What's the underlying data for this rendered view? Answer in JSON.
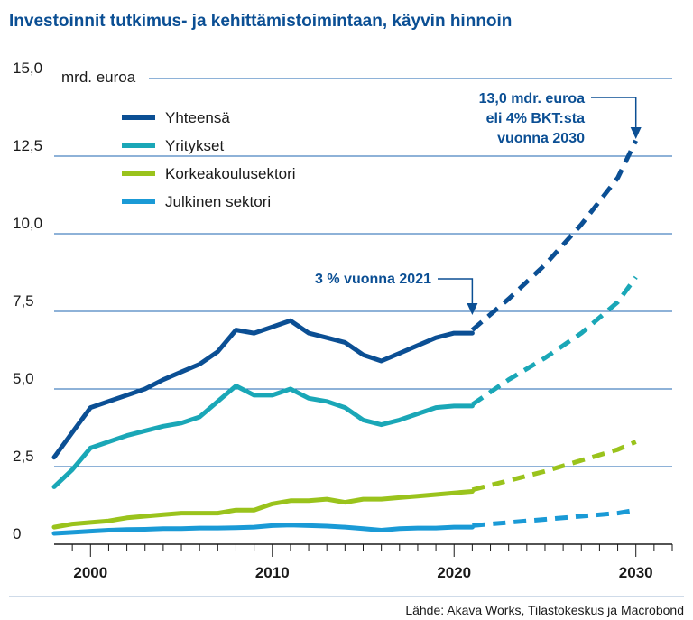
{
  "chart_data": {
    "type": "line",
    "title": "Investoinnit tutkimus- ja kehittämistoimintaan, käyvin hinnoin",
    "ylabel": "mrd. euroa",
    "ylim": [
      0,
      15
    ],
    "yticks": [
      "15,0",
      "12,5",
      "10,0",
      "7,5",
      "5,0",
      "2,5",
      "0"
    ],
    "ytick_values": [
      15,
      12.5,
      10,
      7.5,
      5,
      2.5,
      0
    ],
    "xlim": [
      1998,
      2032
    ],
    "xticks": [
      "2000",
      "2010",
      "2020",
      "2030"
    ],
    "xtick_values": [
      2000,
      2010,
      2020,
      2030
    ],
    "grid": true,
    "legend_position": "top-left",
    "series": [
      {
        "name": "Yhteensä",
        "color": "#0b4f94",
        "x": [
          1998,
          1999,
          2000,
          2001,
          2002,
          2003,
          2004,
          2005,
          2006,
          2007,
          2008,
          2009,
          2010,
          2011,
          2012,
          2013,
          2014,
          2015,
          2016,
          2017,
          2018,
          2019,
          2020,
          2021
        ],
        "values": [
          2.8,
          3.6,
          4.4,
          4.6,
          4.8,
          5.0,
          5.3,
          5.55,
          5.8,
          6.2,
          6.9,
          6.8,
          7.0,
          7.2,
          6.8,
          6.65,
          6.5,
          6.1,
          5.9,
          6.15,
          6.4,
          6.65,
          6.8,
          6.8
        ],
        "projection": {
          "x": [
            2021,
            2023,
            2025,
            2027,
            2029,
            2030
          ],
          "values": [
            6.9,
            7.9,
            9.0,
            10.3,
            11.8,
            13.0
          ]
        }
      },
      {
        "name": "Yritykset",
        "color": "#1aa7b7",
        "x": [
          1998,
          1999,
          2000,
          2001,
          2002,
          2003,
          2004,
          2005,
          2006,
          2007,
          2008,
          2009,
          2010,
          2011,
          2012,
          2013,
          2014,
          2015,
          2016,
          2017,
          2018,
          2019,
          2020,
          2021
        ],
        "values": [
          1.85,
          2.4,
          3.1,
          3.3,
          3.5,
          3.65,
          3.8,
          3.9,
          4.1,
          4.6,
          5.1,
          4.8,
          4.8,
          5.0,
          4.7,
          4.6,
          4.4,
          4.0,
          3.85,
          4.0,
          4.2,
          4.4,
          4.45,
          4.45
        ],
        "projection": {
          "x": [
            2021,
            2023,
            2025,
            2027,
            2029,
            2030
          ],
          "values": [
            4.5,
            5.3,
            6.0,
            6.8,
            7.8,
            8.6
          ]
        }
      },
      {
        "name": "Korkeakoulusektori",
        "color": "#9ac31c",
        "x": [
          1998,
          1999,
          2000,
          2001,
          2002,
          2003,
          2004,
          2005,
          2006,
          2007,
          2008,
          2009,
          2010,
          2011,
          2012,
          2013,
          2014,
          2015,
          2016,
          2017,
          2018,
          2019,
          2020,
          2021
        ],
        "values": [
          0.55,
          0.65,
          0.7,
          0.75,
          0.85,
          0.9,
          0.95,
          1.0,
          1.0,
          1.0,
          1.1,
          1.1,
          1.3,
          1.4,
          1.4,
          1.45,
          1.35,
          1.45,
          1.45,
          1.5,
          1.55,
          1.6,
          1.65,
          1.7
        ],
        "projection": {
          "x": [
            2021,
            2023,
            2025,
            2027,
            2029,
            2030
          ],
          "values": [
            1.75,
            2.05,
            2.35,
            2.7,
            3.05,
            3.3
          ]
        }
      },
      {
        "name": "Julkinen sektori",
        "color": "#1a9ad6",
        "x": [
          1998,
          1999,
          2000,
          2001,
          2002,
          2003,
          2004,
          2005,
          2006,
          2007,
          2008,
          2009,
          2010,
          2011,
          2012,
          2013,
          2014,
          2015,
          2016,
          2017,
          2018,
          2019,
          2020,
          2021
        ],
        "values": [
          0.35,
          0.38,
          0.42,
          0.45,
          0.47,
          0.48,
          0.5,
          0.5,
          0.52,
          0.52,
          0.53,
          0.55,
          0.6,
          0.62,
          0.6,
          0.58,
          0.55,
          0.5,
          0.45,
          0.5,
          0.52,
          0.52,
          0.55,
          0.55
        ],
        "projection": {
          "x": [
            2021,
            2023,
            2025,
            2027,
            2029,
            2030
          ],
          "values": [
            0.6,
            0.7,
            0.8,
            0.9,
            1.0,
            1.1
          ]
        }
      }
    ],
    "annotations": [
      {
        "lines": [
          "13,0 mdr. euroa",
          "eli 4% BKT:sta",
          "vuonna 2030"
        ],
        "x": 2030,
        "y": 13.0
      },
      {
        "lines": [
          "3 % vuonna 2021"
        ],
        "x": 2021,
        "y": 6.85
      }
    ],
    "source": "Lähde: Akava Works, Tilastokeskus ja Macrobond"
  }
}
